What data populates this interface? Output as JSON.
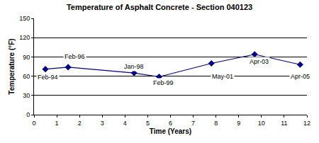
{
  "chart_data": {
    "type": "line",
    "title": "Temperature of Asphalt Concrete - Section 040123",
    "x_label": "Time (Years)",
    "y_label": "Temperature (°F)",
    "x": [
      0.5,
      1.5,
      4.4,
      5.5,
      7.8,
      9.7,
      11.7
    ],
    "values": [
      71,
      74,
      65,
      59,
      80,
      94,
      78
    ],
    "color": "#000080",
    "marker": "diamond",
    "line_style": "solid",
    "xlim": [
      0,
      12
    ],
    "xticks": [
      0,
      1,
      2,
      3,
      4,
      5,
      6,
      7,
      8,
      9,
      10,
      11,
      12
    ],
    "ylim": [
      0,
      150
    ],
    "yticks": [
      0,
      30,
      60,
      90,
      120,
      150
    ],
    "grid": true,
    "annotations": [
      {
        "text": "Feb-94",
        "x": 0.6,
        "y": 58
      },
      {
        "text": "Feb-96",
        "x": 1.8,
        "y": 90
      },
      {
        "text": "Jan-98",
        "x": 4.4,
        "y": 75
      },
      {
        "text": "Feb-99",
        "x": 5.7,
        "y": 50
      },
      {
        "text": "May-01",
        "x": 8.3,
        "y": 60
      },
      {
        "text": "Apr-03",
        "x": 9.9,
        "y": 83
      },
      {
        "text": "Apr-05",
        "x": 11.7,
        "y": 60
      }
    ]
  }
}
